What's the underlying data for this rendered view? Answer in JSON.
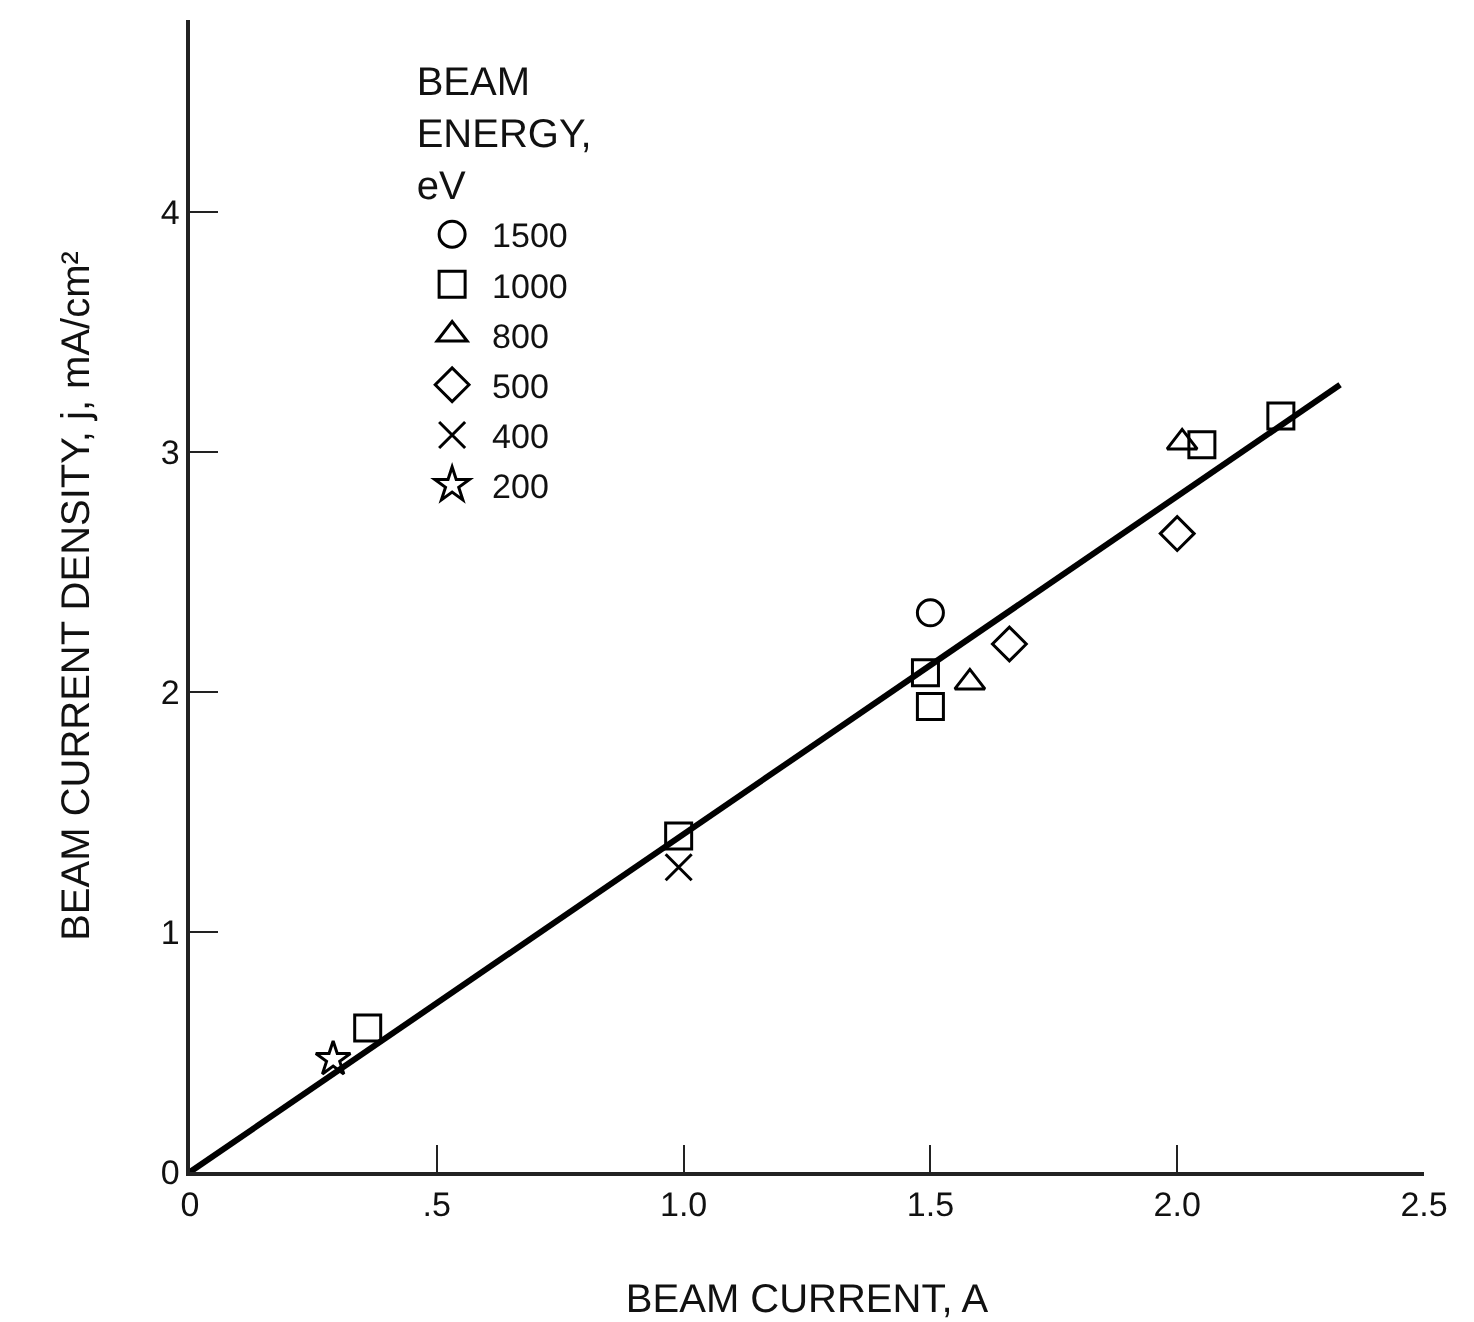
{
  "chart_data": {
    "type": "scatter",
    "xlabel": "BEAM CURRENT, A",
    "ylabel": "BEAM CURRENT DENSITY, j, mA/cm²",
    "legend_title": "BEAM\nENERGY,\neV",
    "legend": "top left",
    "grid": false,
    "xlim": [
      0,
      2.5
    ],
    "xticks": [
      0,
      {
        "value": 0.5,
        "label": ".5"
      },
      {
        "value": 1,
        "label": "1.0"
      },
      {
        "value": 1.5,
        "label": "1.5"
      },
      {
        "value": 2,
        "label": "2.0"
      },
      {
        "value": 2.5,
        "label": "2.5"
      }
    ],
    "ylim": [
      0,
      4.8
    ],
    "yticks": [
      0,
      1,
      2,
      3,
      4
    ],
    "series": [
      {
        "type": "line",
        "color": "#000000",
        "line_style": "solid",
        "x": [
          0,
          2.33
        ],
        "values": [
          0,
          3.28
        ]
      },
      {
        "name": "1500",
        "color": "#000000",
        "marker": "circle",
        "x": [
          1.5
        ],
        "values": [
          2.33
        ]
      },
      {
        "name": "1000",
        "color": "#000000",
        "marker": "square",
        "x": [
          0.36,
          0.99,
          1.49,
          1.5,
          2.05,
          2.21
        ],
        "values": [
          0.6,
          1.4,
          2.08,
          1.94,
          3.03,
          3.15
        ]
      },
      {
        "name": "800",
        "color": "#000000",
        "marker": "triangle",
        "x": [
          1.58,
          2.01
        ],
        "values": [
          2.04,
          3.04
        ]
      },
      {
        "name": "500",
        "color": "#000000",
        "marker": "diamond",
        "x": [
          1.66,
          2.0
        ],
        "values": [
          2.2,
          2.66
        ]
      },
      {
        "name": "400",
        "color": "#000000",
        "marker": "cross",
        "x": [
          0.99
        ],
        "values": [
          1.27
        ]
      },
      {
        "name": "200",
        "color": "#000000",
        "marker": "star",
        "x": [
          0.29
        ],
        "values": [
          0.47
        ]
      }
    ]
  }
}
